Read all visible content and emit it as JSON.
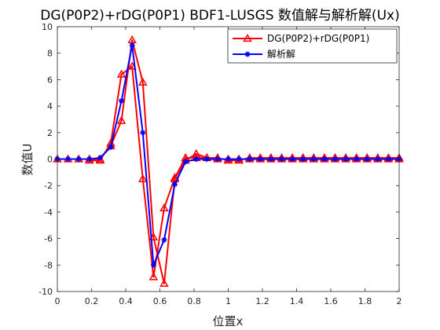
{
  "chart_data": {
    "type": "line",
    "title": "DG(P0P2)+rDG(P0P1) BDF1-LUSGS 数值解与解析解(Ux)",
    "xlabel": "位置x",
    "ylabel": "数值U",
    "xlim": [
      0,
      2
    ],
    "ylim": [
      -10,
      10
    ],
    "xticks": [
      0,
      0.2,
      0.4,
      0.6,
      0.8,
      1,
      1.2,
      1.4,
      1.6,
      1.8,
      2
    ],
    "xtick_labels": [
      "0",
      "0.2",
      "0.4",
      "0.6",
      "0.8",
      "1",
      "1.2",
      "1.4",
      "1.6",
      "1.8",
      "2"
    ],
    "yticks": [
      -10,
      -8,
      -6,
      -4,
      -2,
      0,
      2,
      4,
      6,
      8,
      10
    ],
    "ytick_labels": [
      "-10",
      "-8",
      "-6",
      "-4",
      "-2",
      "0",
      "2",
      "4",
      "6",
      "8",
      "10"
    ],
    "grid": false,
    "legend_position": "top-right",
    "series": [
      {
        "name": "DG(P0P2)+rDG(P0P1)",
        "color": "#ff0000",
        "marker": "triangle",
        "segments": [
          {
            "x": [
              0,
              0.0625,
              0.125,
              0.1875,
              0.25,
              0.3125,
              0.375,
              0.4375,
              0.5,
              0.5625,
              0.625,
              0.6875,
              0.75,
              0.8125,
              0.875,
              0.9375,
              1,
              1.0625,
              1.125,
              1.1875,
              1.25,
              1.3125,
              1.375,
              1.4375,
              1.5,
              1.5625,
              1.625,
              1.6875,
              1.75,
              1.8125,
              1.875,
              1.9375,
              2
            ],
            "y": [
              0,
              0,
              0,
              0,
              0,
              1.0,
              2.9,
              9.0,
              5.8,
              -5.9,
              -9.4,
              -1.5,
              -0.1,
              0.4,
              0.1,
              0,
              0,
              0,
              0,
              0,
              0,
              0,
              0,
              0,
              0,
              0,
              0,
              0,
              0,
              0,
              0,
              0,
              0
            ]
          },
          {
            "x": [
              0.1875,
              0.25,
              0.3125,
              0.375,
              0.4375,
              0.5,
              0.5625,
              0.625,
              0.6875,
              0.75,
              0.8125,
              0.875,
              0.9375,
              1,
              1.0625,
              1.125,
              1.1875,
              1.25,
              1.3125,
              1.375,
              1.4375,
              1.5,
              1.5625,
              1.625,
              1.6875,
              1.75,
              1.8125,
              1.875,
              1.9375,
              2
            ],
            "y": [
              -0.1,
              -0.1,
              1.2,
              6.4,
              7.0,
              -1.5,
              -8.9,
              -3.7,
              -1.4,
              0.1,
              0.1,
              0.1,
              0.1,
              -0.1,
              -0.1,
              0.1,
              0.1,
              0.1,
              0.1,
              0.1,
              0.1,
              0.1,
              0.1,
              0.1,
              0.1,
              0.1,
              0.1,
              0.1,
              0.1,
              0.1
            ]
          }
        ]
      },
      {
        "name": "解析解",
        "color": "#0000ff",
        "marker": "asterisk",
        "segments": [
          {
            "x": [
              0,
              0.0625,
              0.125,
              0.1875,
              0.25,
              0.3125,
              0.375,
              0.4375,
              0.5,
              0.5625,
              0.625,
              0.6875,
              0.75,
              0.8125,
              0.875,
              0.9375,
              1,
              1.0625,
              1.125,
              1.1875,
              1.25,
              1.3125,
              1.375,
              1.4375,
              1.5,
              1.5625,
              1.625,
              1.6875,
              1.75,
              1.8125,
              1.875,
              1.9375,
              2
            ],
            "y": [
              0,
              0,
              0,
              0,
              0.1,
              0.9,
              4.4,
              8.6,
              2.0,
              -8.0,
              -6.1,
              -1.9,
              -0.2,
              0,
              0,
              0,
              0,
              0,
              0,
              0,
              0,
              0,
              0,
              0,
              0,
              0,
              0,
              0,
              0,
              0,
              0,
              0,
              0
            ]
          }
        ]
      }
    ]
  }
}
